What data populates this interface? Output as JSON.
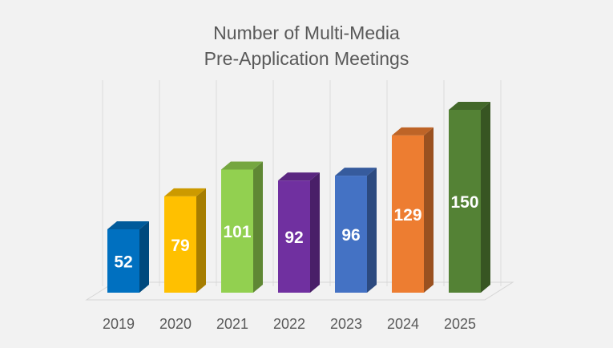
{
  "chart_data": {
    "type": "bar",
    "title_lines": [
      "Number of Multi-Media",
      "Pre-Application Meetings"
    ],
    "categories": [
      "2019",
      "2020",
      "2021",
      "2022",
      "2023",
      "2024",
      "2025"
    ],
    "values": [
      52,
      79,
      101,
      92,
      96,
      129,
      150
    ],
    "colors": [
      "#0070c0",
      "#ffc000",
      "#92d050",
      "#7030a0",
      "#4472c4",
      "#ed7d31",
      "#548235"
    ],
    "ylim": [
      0,
      150
    ],
    "grid": true,
    "style": "3d-column",
    "data_labels": true
  }
}
